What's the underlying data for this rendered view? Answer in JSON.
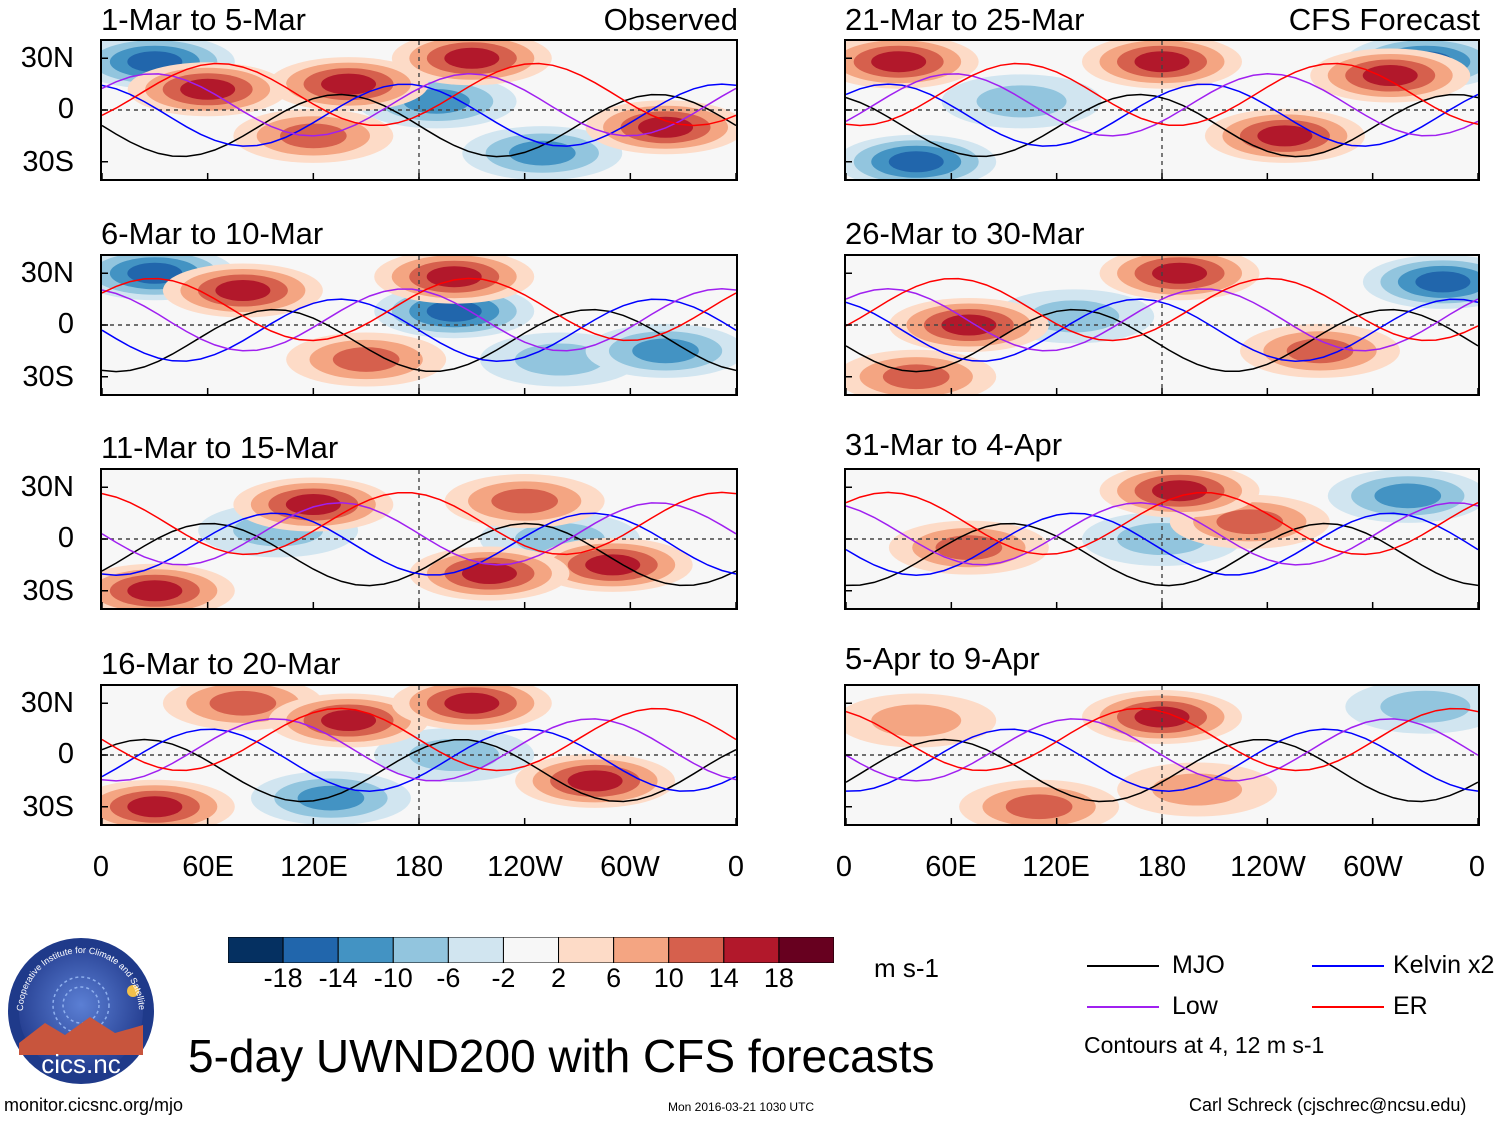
{
  "chart_data": {
    "type": "heatmap",
    "variable": "UWND200",
    "title": "5-day UWND200 with CFS forecasts",
    "colorbar": {
      "ticks": [
        "-18",
        "-14",
        "-10",
        "-6",
        "-2",
        "2",
        "6",
        "10",
        "14",
        "18"
      ],
      "colors": [
        "#053061",
        "#2166ac",
        "#4393c3",
        "#92c5de",
        "#d1e5f0",
        "#f7f7f7",
        "#fddbc7",
        "#f4a582",
        "#d6604d",
        "#b2182b",
        "#67001f"
      ],
      "units": "m s-1"
    },
    "lat_ticks": [
      "30N",
      "0",
      "30S"
    ],
    "lon_ticks": [
      "0",
      "60E",
      "120E",
      "180",
      "120W",
      "60W",
      "0"
    ],
    "observed_label": "Observed",
    "forecast_label": "CFS Forecast",
    "panels": [
      {
        "title": "1-Mar to 5-Mar",
        "source": "Observed",
        "anomalies": [
          {
            "lon": 60,
            "lat": 12,
            "value": 18
          },
          {
            "lon": 140,
            "lat": 15,
            "value": 14
          },
          {
            "lon": 210,
            "lat": 30,
            "value": 18
          },
          {
            "lon": 30,
            "lat": 28,
            "value": -14
          },
          {
            "lon": 190,
            "lat": 5,
            "value": -10
          },
          {
            "lon": 320,
            "lat": -10,
            "value": 14
          },
          {
            "lon": 250,
            "lat": -25,
            "value": -10
          },
          {
            "lon": 120,
            "lat": -15,
            "value": 10
          }
        ]
      },
      {
        "title": "6-Mar to 10-Mar",
        "source": "Observed",
        "anomalies": [
          {
            "lon": 80,
            "lat": 20,
            "value": 18
          },
          {
            "lon": 200,
            "lat": 28,
            "value": 18
          },
          {
            "lon": 30,
            "lat": 30,
            "value": -14
          },
          {
            "lon": 200,
            "lat": 8,
            "value": -14
          },
          {
            "lon": 150,
            "lat": -20,
            "value": 10
          },
          {
            "lon": 320,
            "lat": -15,
            "value": -10
          },
          {
            "lon": 260,
            "lat": -20,
            "value": -6
          }
        ]
      },
      {
        "title": "11-Mar to 15-Mar",
        "source": "Observed",
        "anomalies": [
          {
            "lon": 120,
            "lat": 20,
            "value": 14
          },
          {
            "lon": 240,
            "lat": 22,
            "value": 10
          },
          {
            "lon": 220,
            "lat": -20,
            "value": 18
          },
          {
            "lon": 290,
            "lat": -15,
            "value": 14
          },
          {
            "lon": 30,
            "lat": -30,
            "value": 14
          },
          {
            "lon": 100,
            "lat": 5,
            "value": -6
          },
          {
            "lon": 260,
            "lat": 0,
            "value": -6
          }
        ]
      },
      {
        "title": "16-Mar to 20-Mar",
        "source": "Observed",
        "anomalies": [
          {
            "lon": 140,
            "lat": 20,
            "value": 14
          },
          {
            "lon": 210,
            "lat": 30,
            "value": 14
          },
          {
            "lon": 280,
            "lat": -15,
            "value": 18
          },
          {
            "lon": 30,
            "lat": -30,
            "value": 18
          },
          {
            "lon": 80,
            "lat": 30,
            "value": 10
          },
          {
            "lon": 200,
            "lat": 0,
            "value": -6
          },
          {
            "lon": 130,
            "lat": -25,
            "value": -10
          }
        ]
      },
      {
        "title": "21-Mar to 25-Mar",
        "source": "CFS Forecast",
        "anomalies": [
          {
            "lon": 180,
            "lat": 28,
            "value": 18
          },
          {
            "lon": 30,
            "lat": 28,
            "value": 14
          },
          {
            "lon": 310,
            "lat": 20,
            "value": 18
          },
          {
            "lon": 330,
            "lat": 28,
            "value": -14
          },
          {
            "lon": 40,
            "lat": -30,
            "value": -18
          },
          {
            "lon": 250,
            "lat": -15,
            "value": 14
          },
          {
            "lon": 100,
            "lat": 5,
            "value": -6
          }
        ]
      },
      {
        "title": "26-Mar to 30-Mar",
        "source": "CFS Forecast",
        "anomalies": [
          {
            "lon": 190,
            "lat": 30,
            "value": 18
          },
          {
            "lon": 70,
            "lat": 0,
            "value": 14
          },
          {
            "lon": 340,
            "lat": 25,
            "value": -14
          },
          {
            "lon": 270,
            "lat": -15,
            "value": 10
          },
          {
            "lon": 130,
            "lat": 5,
            "value": -6
          },
          {
            "lon": 40,
            "lat": -30,
            "value": 10
          }
        ]
      },
      {
        "title": "31-Mar to 4-Apr",
        "source": "CFS Forecast",
        "anomalies": [
          {
            "lon": 190,
            "lat": 28,
            "value": 18
          },
          {
            "lon": 70,
            "lat": -5,
            "value": 10
          },
          {
            "lon": 320,
            "lat": 25,
            "value": -10
          },
          {
            "lon": 230,
            "lat": 10,
            "value": 10
          },
          {
            "lon": 180,
            "lat": 0,
            "value": -6
          }
        ]
      },
      {
        "title": "5-Apr to 9-Apr",
        "source": "CFS Forecast",
        "anomalies": [
          {
            "lon": 180,
            "lat": 22,
            "value": 14
          },
          {
            "lon": 330,
            "lat": 28,
            "value": -6
          },
          {
            "lon": 200,
            "lat": -20,
            "value": 6
          },
          {
            "lon": 110,
            "lat": -30,
            "value": 10
          },
          {
            "lon": 40,
            "lat": 20,
            "value": 6
          }
        ]
      }
    ],
    "legend": [
      {
        "label": "MJO",
        "color": "#000000"
      },
      {
        "label": "Kelvin x2",
        "color": "#0000ff"
      },
      {
        "label": "Low",
        "color": "#a020f0"
      },
      {
        "label": "ER",
        "color": "#ff0000"
      }
    ],
    "contour_note": "Contours at 4, 12 m s-1"
  },
  "logo_text": "cics.nc",
  "logo_ring_text": "Cooperative Institute for Climate and Satellites",
  "footer": {
    "left": "monitor.cicsnc.org/mjo",
    "center": "Mon 2016-03-21 1030 UTC",
    "right": "Carl Schreck (cjschrec@ncsu.edu)"
  }
}
